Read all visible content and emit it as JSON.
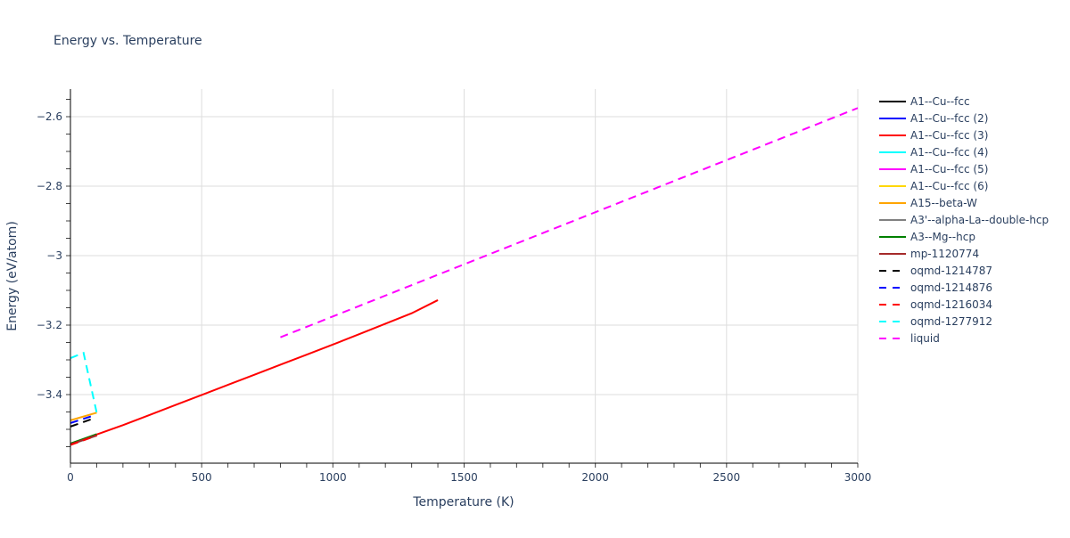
{
  "chart_data": {
    "type": "line",
    "title": "Energy vs. Temperature",
    "xlabel": "Temperature (K)",
    "ylabel": "Energy (eV/atom)",
    "xlim": [
      0,
      3000
    ],
    "ylim": [
      -3.58,
      -2.52
    ],
    "xticks": [
      0,
      500,
      1000,
      1500,
      2000,
      2500,
      3000
    ],
    "xtick_labels": [
      "0",
      "500",
      "1000",
      "1500",
      "2000",
      "2500",
      "3000"
    ],
    "yticks": [
      -2.6,
      -2.8,
      -3.0,
      -3.2,
      -3.4
    ],
    "ytick_labels": [
      "−2.6",
      "−2.8",
      "−3",
      "−3.2",
      "−3.4"
    ],
    "grid": true,
    "legend_position": "right",
    "series": [
      {
        "name": "A1--Cu--fcc",
        "color": "#000000",
        "dash": "solid",
        "x": [
          0,
          100
        ],
        "y": [
          -3.542,
          -3.517
        ]
      },
      {
        "name": "A1--Cu--fcc (2)",
        "color": "#0000ff",
        "dash": "solid",
        "x": [
          0,
          100
        ],
        "y": [
          -3.542,
          -3.517
        ]
      },
      {
        "name": "A1--Cu--fcc (3)",
        "color": "#ff0000",
        "dash": "solid",
        "x": [
          0,
          100,
          200,
          300,
          400,
          500,
          600,
          700,
          800,
          900,
          1000,
          1100,
          1200,
          1300,
          1400
        ],
        "y": [
          -3.542,
          -3.515,
          -3.488,
          -3.459,
          -3.43,
          -3.401,
          -3.372,
          -3.343,
          -3.314,
          -3.285,
          -3.256,
          -3.226,
          -3.196,
          -3.166,
          -3.128
        ]
      },
      {
        "name": "A1--Cu--fcc (4)",
        "color": "#00ffff",
        "dash": "solid",
        "x": [
          0,
          100
        ],
        "y": [
          -3.542,
          -3.517
        ]
      },
      {
        "name": "A1--Cu--fcc (5)",
        "color": "#ff00ff",
        "dash": "solid",
        "x": [
          0,
          100
        ],
        "y": [
          -3.542,
          -3.517
        ]
      },
      {
        "name": "A1--Cu--fcc (6)",
        "color": "#ffd700",
        "dash": "solid",
        "x": [
          0,
          100
        ],
        "y": [
          -3.542,
          -3.517
        ]
      },
      {
        "name": "A15--beta-W",
        "color": "#ffa500",
        "dash": "solid",
        "x": [
          0,
          100
        ],
        "y": [
          -3.474,
          -3.452
        ]
      },
      {
        "name": "A3'--alpha-La--double-hcp",
        "color": "#808080",
        "dash": "solid",
        "x": [
          0,
          100
        ],
        "y": [
          -3.544,
          -3.518
        ]
      },
      {
        "name": "A3--Mg--hcp",
        "color": "#008000",
        "dash": "solid",
        "x": [
          0,
          100
        ],
        "y": [
          -3.541,
          -3.514
        ]
      },
      {
        "name": "mp-1120774",
        "color": "#a52a2a",
        "dash": "solid",
        "x": [
          0,
          100
        ],
        "y": [
          -3.543,
          -3.517
        ]
      },
      {
        "name": "oqmd-1214787",
        "color": "#000000",
        "dash": "dash",
        "x": [
          0,
          90
        ],
        "y": [
          -3.492,
          -3.468
        ]
      },
      {
        "name": "oqmd-1214876",
        "color": "#0000ff",
        "dash": "dash",
        "x": [
          0,
          90
        ],
        "y": [
          -3.482,
          -3.46
        ]
      },
      {
        "name": "oqmd-1216034",
        "color": "#ff0000",
        "dash": "dash",
        "x": [
          0,
          100
        ],
        "y": [
          -3.545,
          -3.518
        ]
      },
      {
        "name": "oqmd-1277912",
        "color": "#00ffff",
        "dash": "dash",
        "x": [
          0,
          50,
          100
        ],
        "y": [
          -3.295,
          -3.28,
          -3.452
        ]
      },
      {
        "name": "liquid",
        "color": "#ff00ff",
        "dash": "dash",
        "x": [
          800,
          3000
        ],
        "y": [
          -3.235,
          -2.575
        ]
      }
    ]
  }
}
